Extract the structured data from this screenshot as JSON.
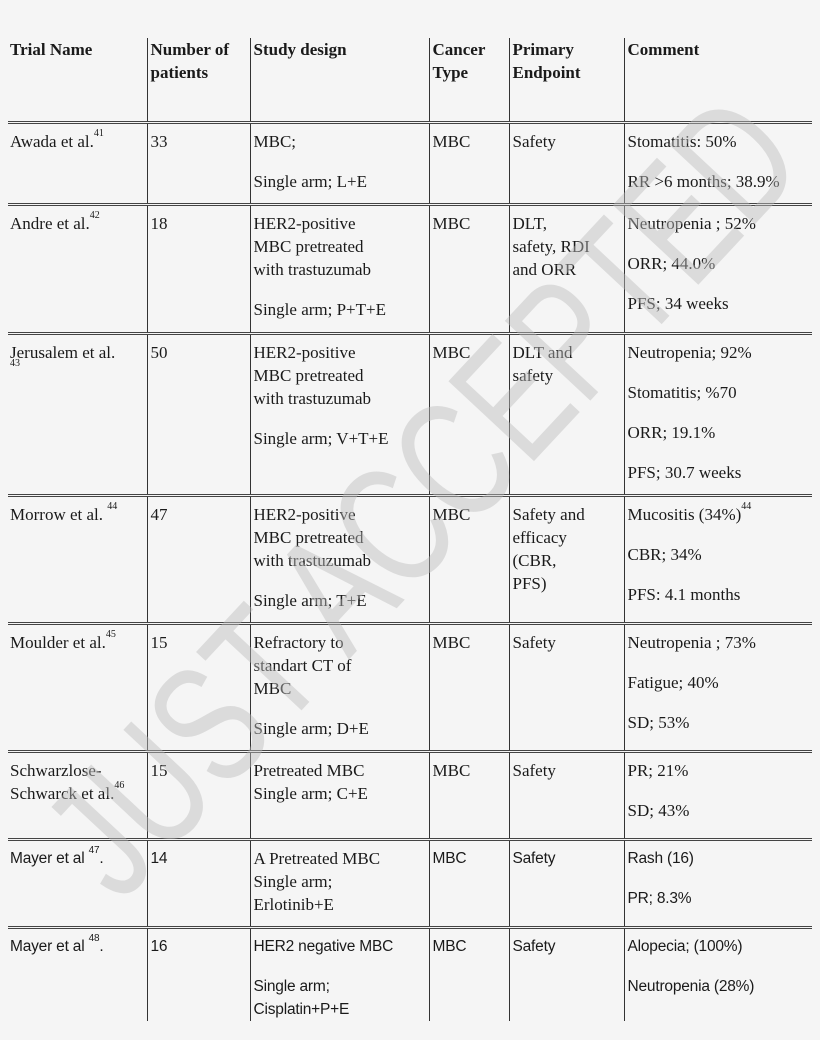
{
  "watermark": "JUST ACCEPTED",
  "headers": [
    "Trial Name",
    "Number of patients",
    "Study design",
    "Cancer Type",
    "Primary Endpoint",
    "Comment"
  ],
  "rows": [
    {
      "trial": {
        "name": "Awada et al.",
        "ref": "41",
        "suffix": ""
      },
      "patients": "33",
      "design": [
        [
          "MBC;"
        ],
        [
          "Single arm; L+E"
        ]
      ],
      "cancer": "MBC",
      "endpoint": [
        "Safety"
      ],
      "comment": [
        {
          "text": "Stomatitis: 50%"
        },
        {
          "text": "RR >6 months; 38.9%"
        }
      ]
    },
    {
      "trial": {
        "name": "Andre et al.",
        "ref": "42",
        "suffix": ""
      },
      "patients": "18",
      "design": [
        [
          "HER2-positive",
          "MBC pretreated",
          "with trastuzumab"
        ],
        [
          "Single arm; P+T+E"
        ]
      ],
      "cancer": "MBC",
      "endpoint": [
        "DLT,",
        "safety, RDI",
        "and ORR"
      ],
      "comment": [
        {
          "text": "Neutropenia ; 52%"
        },
        {
          "text": "ORR; 44.0%"
        },
        {
          "text": "PFS; 34 weeks"
        }
      ]
    },
    {
      "trial": {
        "name": "Jerusalem et al.",
        "ref": "43",
        "suffix": ""
      },
      "patients": "50",
      "design": [
        [
          "HER2-positive",
          "MBC pretreated",
          "with trastuzumab"
        ],
        [
          "Single arm; V+T+E"
        ]
      ],
      "cancer": "MBC",
      "endpoint": [
        "DLT and",
        "safety"
      ],
      "comment": [
        {
          "text": "Neutropenia; 92%"
        },
        {
          "text": "Stomatitis; %70"
        },
        {
          "text": "ORR; 19.1%"
        },
        {
          "text": "PFS; 30.7 weeks"
        }
      ]
    },
    {
      "trial": {
        "name": "Morrow et al. ",
        "ref": "44",
        "suffix": ""
      },
      "patients": "47",
      "design": [
        [
          "HER2-positive",
          "MBC pretreated",
          "with trastuzumab"
        ],
        [
          "Single arm; T+E"
        ]
      ],
      "cancer": "MBC",
      "endpoint": [
        "Safety and",
        "efficacy",
        "(CBR,",
        "PFS)"
      ],
      "comment": [
        {
          "text": "Mucositis (34%)",
          "ref": "44"
        },
        {
          "text": "CBR; 34%"
        },
        {
          "text": "PFS: 4.1 months"
        }
      ]
    },
    {
      "trial": {
        "name": "Moulder et al.",
        "ref": "45",
        "suffix": ""
      },
      "patients": "15",
      "design": [
        [
          "Refractory to",
          "standart CT of",
          "MBC"
        ],
        [
          "Single arm; D+E"
        ]
      ],
      "cancer": "MBC",
      "endpoint": [
        "Safety"
      ],
      "comment": [
        {
          "text": "Neutropenia ; 73%"
        },
        {
          "text": "Fatigue; 40%"
        },
        {
          "text": "SD; 53%"
        }
      ]
    },
    {
      "trial": {
        "name": "Schwarzlose-Schwarck et al.",
        "ref": "46",
        "suffix": ""
      },
      "patients": "15",
      "design": [
        [
          "Pretreated MBC",
          "Single arm; C+E"
        ]
      ],
      "cancer": "MBC",
      "endpoint": [
        "Safety"
      ],
      "comment": [
        {
          "text": "PR; 21%"
        },
        {
          "text": "SD; 43%"
        }
      ]
    },
    {
      "trial": {
        "name": "Mayer et al ",
        "ref": "47",
        "suffix": "."
      },
      "patients": "14",
      "design": [
        [
          "A Pretreated MBC",
          "Single arm;",
          "Erlotinib+E"
        ]
      ],
      "cancer": "MBC",
      "endpoint": [
        "Safety"
      ],
      "comment": [
        {
          "text": "Rash (16)"
        },
        {
          "text": "PR; 8.3%"
        }
      ]
    },
    {
      "trial": {
        "name": "Mayer et al ",
        "ref": "48",
        "suffix": "."
      },
      "patients": "16",
      "design": [
        [
          "HER2 negative MBC"
        ],
        [
          "Single arm;",
          "Cisplatin+P+E"
        ]
      ],
      "cancer": "MBC",
      "endpoint": [
        "Safety"
      ],
      "comment": [
        {
          "text": "Alopecia; (100%)"
        },
        {
          "text": "Neutropenia (28%)"
        }
      ]
    }
  ]
}
